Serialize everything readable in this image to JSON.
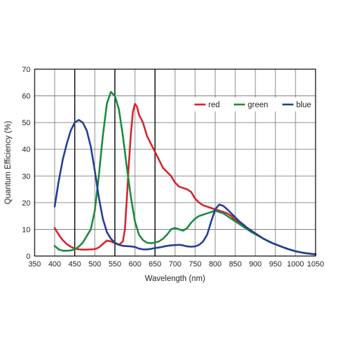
{
  "chart_data": {
    "type": "line",
    "xlabel": "Wavelength (nm)",
    "ylabel": "Quantum Efficiency (%)",
    "xlim": [
      350,
      1050
    ],
    "ylim": [
      0,
      70
    ],
    "x_ticks": [
      350,
      400,
      450,
      500,
      550,
      600,
      650,
      700,
      750,
      800,
      850,
      900,
      950,
      1000,
      1050
    ],
    "y_ticks": [
      0,
      10,
      20,
      30,
      40,
      50,
      60,
      70
    ],
    "major_vertical_lines": [
      450,
      550,
      650
    ],
    "grid": true,
    "legend_position": "top-right",
    "series": [
      {
        "name": "red",
        "color": "#d7232b",
        "points": [
          [
            400,
            10.5
          ],
          [
            410,
            8
          ],
          [
            420,
            6
          ],
          [
            430,
            4.5
          ],
          [
            440,
            3.5
          ],
          [
            450,
            2.8
          ],
          [
            460,
            2.5
          ],
          [
            470,
            2.4
          ],
          [
            480,
            2.4
          ],
          [
            490,
            2.5
          ],
          [
            500,
            2.6
          ],
          [
            510,
            3.2
          ],
          [
            520,
            4.5
          ],
          [
            530,
            5.8
          ],
          [
            540,
            5.5
          ],
          [
            550,
            4.8
          ],
          [
            560,
            4.2
          ],
          [
            570,
            5.5
          ],
          [
            575,
            10
          ],
          [
            580,
            22
          ],
          [
            585,
            35
          ],
          [
            590,
            46
          ],
          [
            595,
            54
          ],
          [
            600,
            57
          ],
          [
            605,
            56
          ],
          [
            610,
            53
          ],
          [
            620,
            50
          ],
          [
            630,
            45
          ],
          [
            640,
            42
          ],
          [
            650,
            39
          ],
          [
            660,
            36
          ],
          [
            670,
            33
          ],
          [
            680,
            31.5
          ],
          [
            690,
            30
          ],
          [
            700,
            27.5
          ],
          [
            710,
            26
          ],
          [
            720,
            25.5
          ],
          [
            730,
            25
          ],
          [
            740,
            24
          ],
          [
            750,
            21.5
          ],
          [
            760,
            20
          ],
          [
            770,
            19
          ],
          [
            780,
            18.5
          ],
          [
            790,
            18
          ],
          [
            800,
            17.5
          ],
          [
            810,
            17
          ],
          [
            820,
            16.5
          ],
          [
            830,
            16
          ],
          [
            840,
            15
          ],
          [
            850,
            13.5
          ],
          [
            860,
            12.5
          ],
          [
            870,
            11.5
          ],
          [
            880,
            10.5
          ],
          [
            890,
            9.5
          ],
          [
            900,
            8.5
          ],
          [
            920,
            6.5
          ],
          [
            940,
            5
          ],
          [
            960,
            3.8
          ],
          [
            980,
            2.7
          ],
          [
            1000,
            1.8
          ],
          [
            1020,
            1.2
          ],
          [
            1040,
            0.8
          ],
          [
            1050,
            0.7
          ]
        ]
      },
      {
        "name": "green",
        "color": "#1b8a3c",
        "points": [
          [
            400,
            3.8
          ],
          [
            410,
            2.5
          ],
          [
            420,
            2
          ],
          [
            430,
            2
          ],
          [
            440,
            2.1
          ],
          [
            450,
            2.5
          ],
          [
            460,
            3.5
          ],
          [
            470,
            5
          ],
          [
            480,
            7.5
          ],
          [
            490,
            10
          ],
          [
            500,
            17
          ],
          [
            510,
            30
          ],
          [
            520,
            45
          ],
          [
            530,
            57
          ],
          [
            540,
            61.5
          ],
          [
            550,
            60
          ],
          [
            560,
            55
          ],
          [
            570,
            45
          ],
          [
            580,
            33
          ],
          [
            590,
            22
          ],
          [
            600,
            13
          ],
          [
            610,
            8
          ],
          [
            620,
            6
          ],
          [
            630,
            5
          ],
          [
            640,
            4.8
          ],
          [
            650,
            5
          ],
          [
            660,
            5.5
          ],
          [
            670,
            6.5
          ],
          [
            680,
            8
          ],
          [
            690,
            10
          ],
          [
            700,
            10.5
          ],
          [
            710,
            10
          ],
          [
            720,
            9.5
          ],
          [
            730,
            10.5
          ],
          [
            740,
            12.5
          ],
          [
            750,
            14
          ],
          [
            760,
            15
          ],
          [
            770,
            15.5
          ],
          [
            780,
            16
          ],
          [
            790,
            16.5
          ],
          [
            800,
            17
          ],
          [
            810,
            16.5
          ],
          [
            820,
            16
          ],
          [
            830,
            15
          ],
          [
            840,
            14
          ],
          [
            850,
            13
          ],
          [
            860,
            12
          ],
          [
            870,
            11
          ],
          [
            880,
            10
          ],
          [
            890,
            9
          ],
          [
            900,
            8.2
          ],
          [
            920,
            6.5
          ],
          [
            940,
            5
          ],
          [
            960,
            3.8
          ],
          [
            980,
            2.7
          ],
          [
            1000,
            1.8
          ],
          [
            1020,
            1.2
          ],
          [
            1040,
            0.8
          ],
          [
            1050,
            0.7
          ]
        ]
      },
      {
        "name": "blue",
        "color": "#233e95",
        "points": [
          [
            400,
            18.5
          ],
          [
            410,
            28
          ],
          [
            420,
            36
          ],
          [
            430,
            42
          ],
          [
            440,
            47
          ],
          [
            450,
            50
          ],
          [
            460,
            51
          ],
          [
            470,
            50
          ],
          [
            480,
            47
          ],
          [
            490,
            41
          ],
          [
            500,
            32
          ],
          [
            510,
            22
          ],
          [
            520,
            14
          ],
          [
            530,
            9
          ],
          [
            540,
            6.5
          ],
          [
            550,
            5
          ],
          [
            560,
            4.2
          ],
          [
            570,
            3.8
          ],
          [
            580,
            3.7
          ],
          [
            590,
            3.6
          ],
          [
            600,
            3.4
          ],
          [
            610,
            2.8
          ],
          [
            620,
            2.5
          ],
          [
            630,
            2.5
          ],
          [
            640,
            2.7
          ],
          [
            650,
            3
          ],
          [
            660,
            3.2
          ],
          [
            670,
            3.5
          ],
          [
            680,
            3.8
          ],
          [
            690,
            4
          ],
          [
            700,
            4.1
          ],
          [
            710,
            4.2
          ],
          [
            720,
            4
          ],
          [
            730,
            3.6
          ],
          [
            740,
            3.5
          ],
          [
            750,
            3.6
          ],
          [
            760,
            4.2
          ],
          [
            770,
            5.5
          ],
          [
            780,
            8
          ],
          [
            790,
            13
          ],
          [
            800,
            17.5
          ],
          [
            810,
            19.3
          ],
          [
            820,
            18.8
          ],
          [
            830,
            17.5
          ],
          [
            840,
            16
          ],
          [
            850,
            14.5
          ],
          [
            860,
            13
          ],
          [
            870,
            11.8
          ],
          [
            880,
            10.5
          ],
          [
            890,
            9.5
          ],
          [
            900,
            8.5
          ],
          [
            920,
            6.5
          ],
          [
            940,
            5
          ],
          [
            960,
            3.8
          ],
          [
            980,
            2.7
          ],
          [
            1000,
            1.8
          ],
          [
            1020,
            1.2
          ],
          [
            1040,
            0.8
          ],
          [
            1050,
            0.6
          ]
        ]
      }
    ]
  }
}
